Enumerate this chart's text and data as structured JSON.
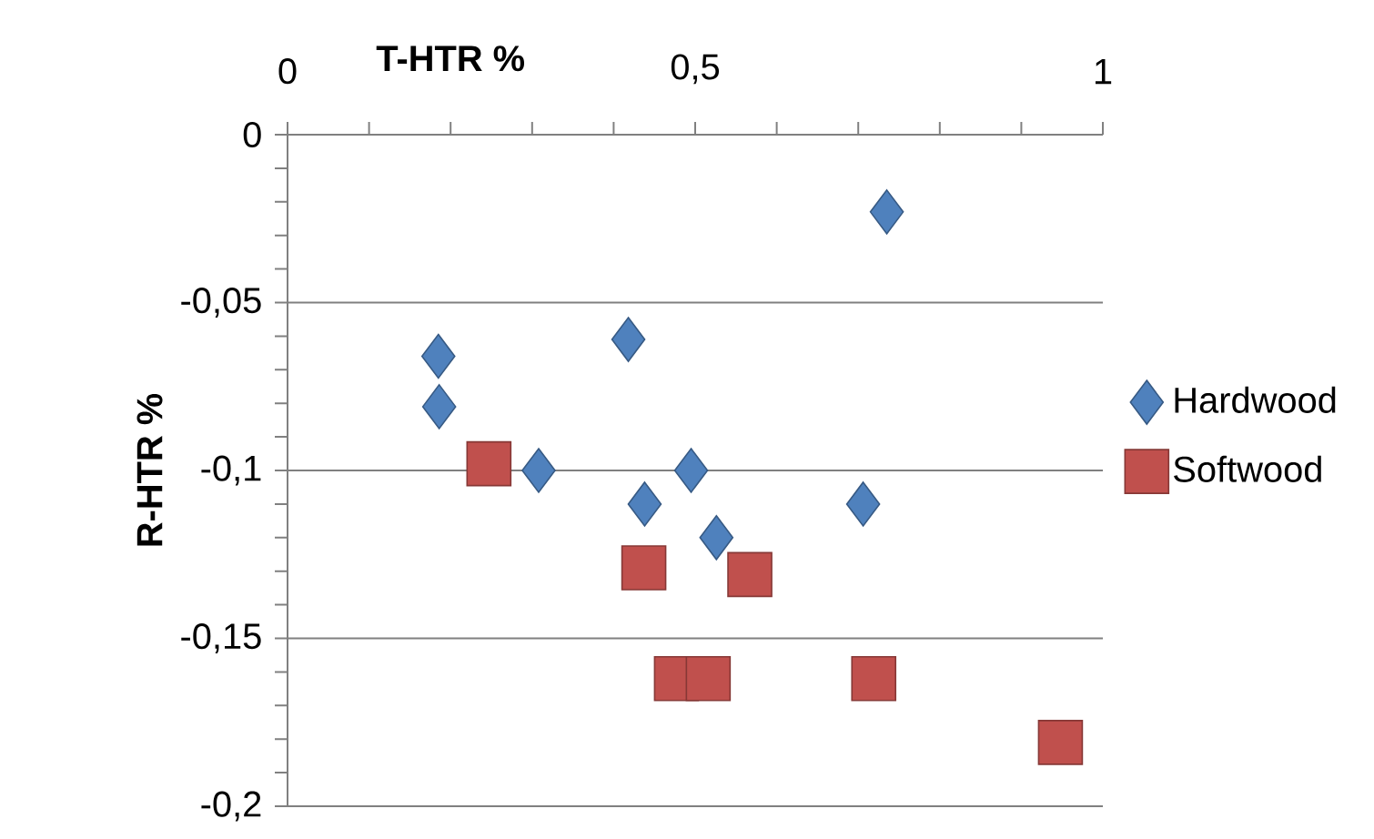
{
  "chart_data": {
    "type": "scatter",
    "xlabel": "T-HTR %",
    "ylabel": "R-HTR %",
    "xlim": [
      0,
      1
    ],
    "ylim": [
      -0.2,
      0
    ],
    "xticks": [
      {
        "value": 0,
        "label": "0"
      },
      {
        "value": 0.1,
        "label": null
      },
      {
        "value": 0.2,
        "label": null
      },
      {
        "value": 0.3,
        "label": null
      },
      {
        "value": 0.4,
        "label": null
      },
      {
        "value": 0.5,
        "label": "0,5"
      },
      {
        "value": 0.6,
        "label": null
      },
      {
        "value": 0.7,
        "label": null
      },
      {
        "value": 0.8,
        "label": null
      },
      {
        "value": 0.9,
        "label": null
      },
      {
        "value": 1,
        "label": "1"
      }
    ],
    "yticks": [
      {
        "value": 0,
        "label": "0"
      },
      {
        "value": -0.05,
        "label": "-0,05"
      },
      {
        "value": -0.1,
        "label": "-0,1"
      },
      {
        "value": -0.15,
        "label": "-0,15"
      },
      {
        "value": -0.2,
        "label": "-0,2"
      }
    ],
    "grid": "y",
    "legend": "right",
    "series": [
      {
        "name": "Hardwood",
        "color": "#4f81bd",
        "marker": "diamond",
        "x": [
          0.735,
          0.185,
          0.186,
          0.418,
          0.308,
          0.495,
          0.438,
          0.526,
          0.706
        ],
        "values": [
          -0.023,
          -0.066,
          -0.081,
          -0.061,
          -0.1,
          -0.1,
          -0.11,
          -0.12,
          -0.11
        ]
      },
      {
        "name": "Softwood",
        "color": "#c0504d",
        "marker": "square",
        "x": [
          0.247,
          0.437,
          0.567,
          0.477,
          0.516,
          0.719,
          0.948
        ],
        "values": [
          -0.098,
          -0.129,
          -0.131,
          -0.162,
          -0.162,
          -0.162,
          -0.181
        ]
      }
    ]
  }
}
